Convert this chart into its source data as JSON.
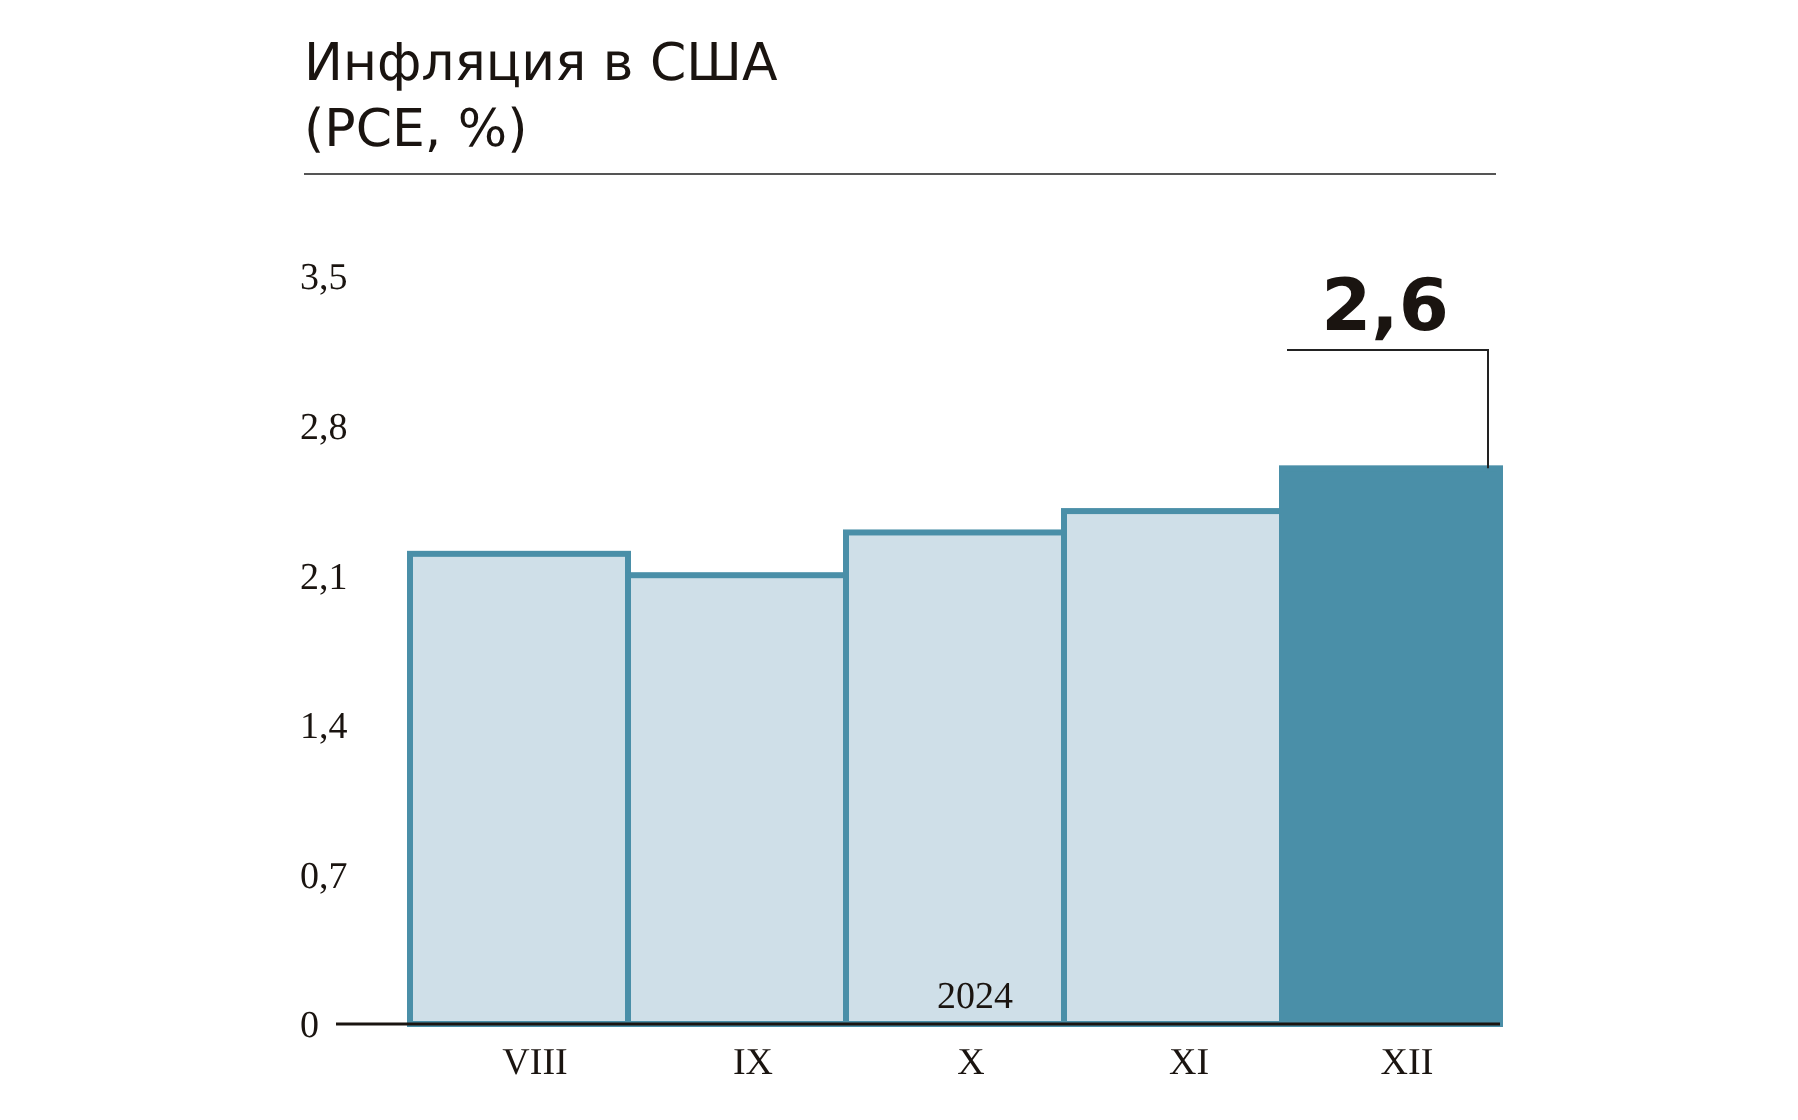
{
  "chart_data": {
    "type": "bar",
    "title": "Инфляция в США\n(PCE, %)",
    "categories": [
      "VIII",
      "IX",
      "X",
      "XI",
      "XII"
    ],
    "values": [
      2.2,
      2.1,
      2.3,
      2.4,
      2.6
    ],
    "colors": [
      "#cfdfe8",
      "#cfdfe8",
      "#cfdfe8",
      "#cfdfe8",
      "#4a8fa8"
    ],
    "value_labels": [
      null,
      null,
      null,
      null,
      "2,6"
    ],
    "ylim": [
      0,
      3.5
    ],
    "yticks": [
      0,
      {
        "value": 0.7,
        "label": "0,7"
      },
      {
        "value": 1.4,
        "label": "1,4"
      },
      {
        "value": 2.1,
        "label": "2,1"
      },
      {
        "value": 2.8,
        "label": "2,8"
      },
      {
        "value": 3.5,
        "label": "3,5"
      }
    ],
    "annotations": [
      "2024"
    ],
    "grid": false
  }
}
